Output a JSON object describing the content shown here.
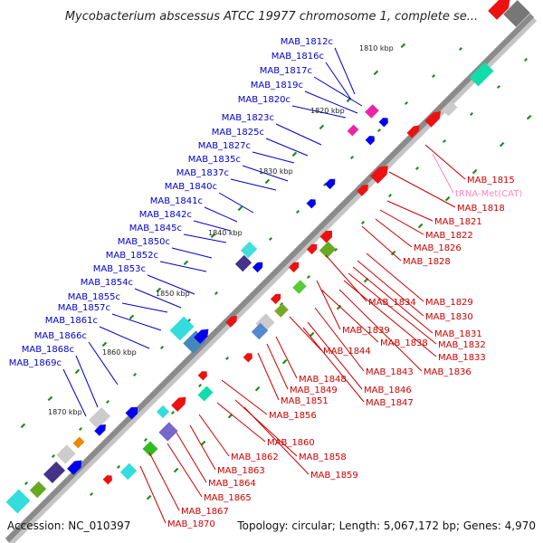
{
  "title": "Mycobacterium abscessus ATCC 19977 chromosome 1, complete se...",
  "footer": {
    "accession": "Accession: NC_010397",
    "summary": "Topology: circular; Length: 5,067,172 bp; Genes: 4,970"
  },
  "colors": {
    "backbone": "#8a8a8a",
    "forward_label": "#0000cc",
    "reverse_label": "#cc0000",
    "trna_label": "#ff88bb",
    "tick": "#1a8f1a"
  },
  "kbp_marks": [
    "1810 kbp",
    "1820 kbp",
    "1830 kbp",
    "1840 kbp",
    "1850 kbp",
    "1860 kbp",
    "1870 kbp"
  ],
  "forward_genes": [
    "MAB_1812c",
    "MAB_1816c",
    "MAB_1817c",
    "MAB_1819c",
    "MAB_1820c",
    "MAB_1823c",
    "MAB_1825c",
    "MAB_1827c",
    "MAB_1835c",
    "MAB_1837c",
    "MAB_1840c",
    "MAB_1841c",
    "MAB_1842c",
    "MAB_1845c",
    "MAB_1850c",
    "MAB_1852c",
    "MAB_1853c",
    "MAB_1854c",
    "MAB_1855c",
    "MAB_1857c",
    "MAB_1861c",
    "MAB_1866c",
    "MAB_1868c",
    "MAB_1869c"
  ],
  "reverse_genes": [
    "MAB_1815",
    "tRNA-Met(CAT)",
    "MAB_1818",
    "MAB_1821",
    "MAB_1822",
    "MAB_1826",
    "MAB_1828",
    "MAB_1834",
    "MAB_1829",
    "MAB_1830",
    "MAB_1839",
    "MAB_1831",
    "MAB_1832",
    "MAB_1838",
    "MAB_1833",
    "MAB_1844",
    "MAB_1843",
    "MAB_1836",
    "MAB_1848",
    "MAB_1849",
    "MAB_1846",
    "MAB_1847",
    "MAB_1851",
    "MAB_1856",
    "MAB_1860",
    "MAB_1858",
    "MAB_1862",
    "MAB_1859",
    "MAB_1863",
    "MAB_1864",
    "MAB_1865",
    "MAB_1867",
    "MAB_1870"
  ]
}
